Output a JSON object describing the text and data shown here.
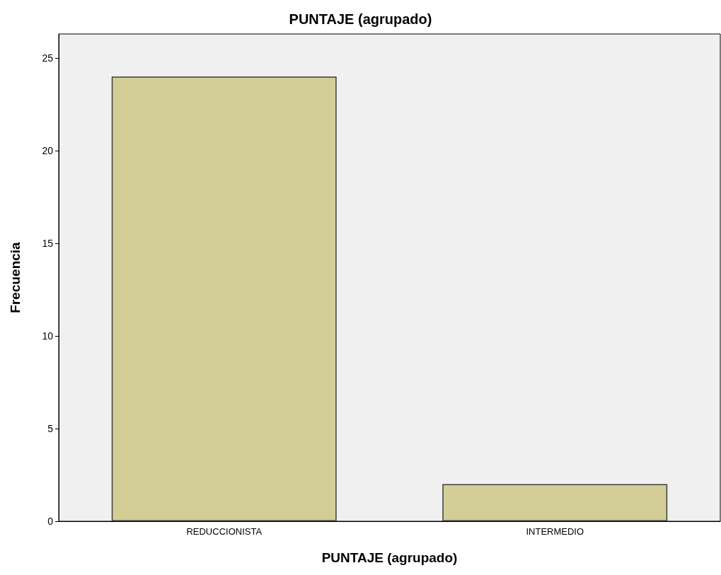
{
  "chart_data": {
    "type": "bar",
    "title": "PUNTAJE (agrupado)",
    "xlabel": "PUNTAJE (agrupado)",
    "ylabel": "Frecuencia",
    "categories": [
      "REDUCCIONISTA",
      "INTERMEDIO"
    ],
    "values": [
      24,
      2
    ],
    "color": "#d3ce98",
    "ylim": [
      0,
      26.3
    ],
    "yticks": [
      0,
      5,
      10,
      15,
      20,
      25
    ],
    "grid": false
  }
}
